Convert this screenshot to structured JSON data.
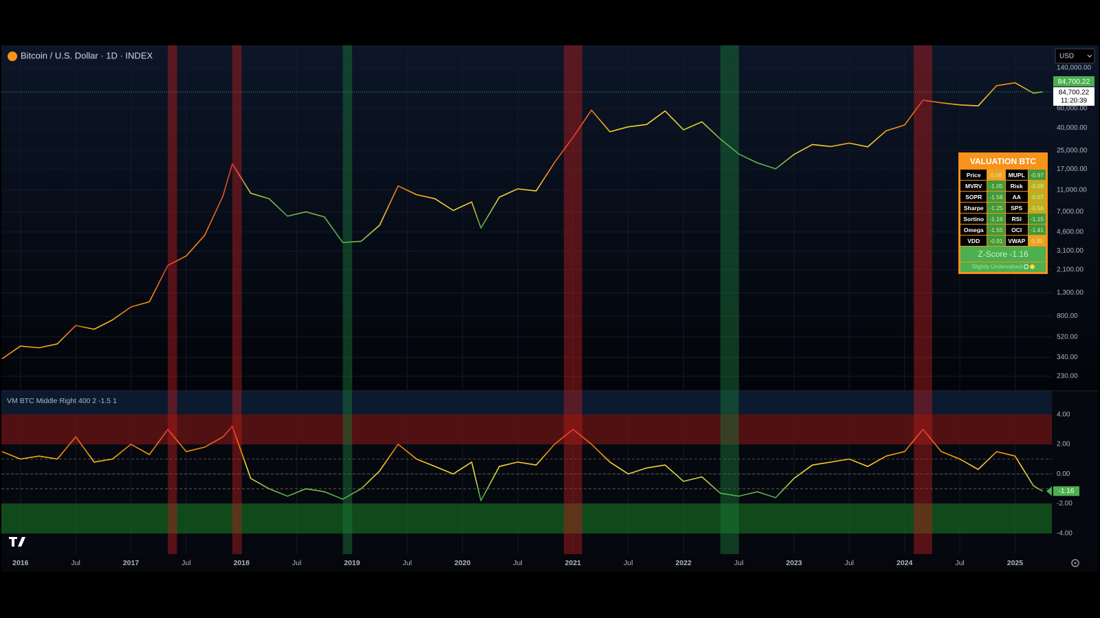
{
  "header": {
    "symbol": "Bitcoin / U.S. Dollar · 1D · INDEX",
    "currency": "USD",
    "price_tag": "84,700.22",
    "countdown": "11:20:39"
  },
  "chart_data": [
    {
      "type": "line",
      "log_scale": true,
      "grid": true,
      "xlim": [
        "2015-11",
        "2025-05"
      ],
      "x": [
        "2015-11",
        "2016-01",
        "2016-03",
        "2016-05",
        "2016-07",
        "2016-09",
        "2016-11",
        "2017-01",
        "2017-03",
        "2017-05",
        "2017-07",
        "2017-09",
        "2017-11",
        "2017-12",
        "2018-02",
        "2018-04",
        "2018-06",
        "2018-08",
        "2018-10",
        "2018-12",
        "2019-02",
        "2019-04",
        "2019-06",
        "2019-08",
        "2019-10",
        "2019-12",
        "2020-02",
        "2020-03",
        "2020-05",
        "2020-07",
        "2020-09",
        "2020-11",
        "2021-01",
        "2021-03",
        "2021-05",
        "2021-07",
        "2021-09",
        "2021-11",
        "2022-01",
        "2022-03",
        "2022-05",
        "2022-07",
        "2022-09",
        "2022-11",
        "2023-01",
        "2023-03",
        "2023-05",
        "2023-07",
        "2023-09",
        "2023-11",
        "2024-01",
        "2024-03",
        "2024-05",
        "2024-07",
        "2024-09",
        "2024-11",
        "2025-01",
        "2025-03",
        "2025-04"
      ],
      "values": [
        330,
        430,
        415,
        450,
        660,
        610,
        740,
        970,
        1080,
        2300,
        2800,
        4300,
        9800,
        19000,
        10300,
        9200,
        6400,
        7000,
        6300,
        3700,
        3800,
        5300,
        12000,
        10000,
        9200,
        7200,
        8600,
        5000,
        9500,
        11300,
        10800,
        19600,
        33000,
        58000,
        37000,
        41000,
        43000,
        57000,
        38500,
        45500,
        31800,
        23300,
        19400,
        17100,
        23100,
        28400,
        27200,
        29200,
        27000,
        37700,
        42500,
        71300,
        67500,
        64600,
        63300,
        96400,
        102400,
        82500,
        84700.22
      ],
      "ylim": [
        170,
        223000
      ],
      "yticks": [
        {
          "value": 140000,
          "label": "140,000.00"
        },
        {
          "value": 60000,
          "label": "60,000.00"
        },
        {
          "value": 40000,
          "label": "40,000.00"
        },
        {
          "value": 25000,
          "label": "25,000.00"
        },
        {
          "value": 17000,
          "label": "17,000.00"
        },
        {
          "value": 11000,
          "label": "11,000.00"
        },
        {
          "value": 7000,
          "label": "7,000.00"
        },
        {
          "value": 4600,
          "label": "4,600.00"
        },
        {
          "value": 3100,
          "label": "3,100.00"
        },
        {
          "value": 2100,
          "label": "2,100.00"
        },
        {
          "value": 1300,
          "label": "1,300.00"
        },
        {
          "value": 800,
          "label": "800.00"
        },
        {
          "value": 520,
          "label": "520.00"
        },
        {
          "value": 340,
          "label": "340.00"
        },
        {
          "value": 230,
          "label": "230.00"
        }
      ],
      "xticks": [
        {
          "value": "2016-01",
          "label": "2016"
        },
        {
          "value": "2016-07",
          "label": "Jul"
        },
        {
          "value": "2017-01",
          "label": "2017"
        },
        {
          "value": "2017-07",
          "label": "Jul"
        },
        {
          "value": "2018-01",
          "label": "2018"
        },
        {
          "value": "2018-07",
          "label": "Jul"
        },
        {
          "value": "2019-01",
          "label": "2019"
        },
        {
          "value": "2019-07",
          "label": "Jul"
        },
        {
          "value": "2020-01",
          "label": "2020"
        },
        {
          "value": "2020-07",
          "label": "Jul"
        },
        {
          "value": "2021-01",
          "label": "2021"
        },
        {
          "value": "2021-07",
          "label": "Jul"
        },
        {
          "value": "2022-01",
          "label": "2022"
        },
        {
          "value": "2022-07",
          "label": "Jul"
        },
        {
          "value": "2023-01",
          "label": "2023"
        },
        {
          "value": "2023-07",
          "label": "Jul"
        },
        {
          "value": "2024-01",
          "label": "2024"
        },
        {
          "value": "2024-07",
          "label": "Jul"
        },
        {
          "value": "2025-01",
          "label": "2025"
        }
      ],
      "highlights": [
        {
          "x": [
            "2017-05",
            "2017-06"
          ],
          "color": "#b71c1c"
        },
        {
          "x": [
            "2017-12",
            "2018-01"
          ],
          "color": "#b71c1c"
        },
        {
          "x": [
            "2020-12",
            "2021-02"
          ],
          "color": "#b71c1c"
        },
        {
          "x": [
            "2024-02",
            "2024-04"
          ],
          "color": "#b71c1c"
        },
        {
          "x": [
            "2018-12",
            "2019-01"
          ],
          "color": "#1b7a3a"
        },
        {
          "x": [
            "2022-05",
            "2022-07"
          ],
          "color": "#1b7a3a"
        }
      ]
    },
    {
      "type": "line",
      "title": "VM BTC Middle Right 400 2 -1.5 1",
      "grid": true,
      "xlim": [
        "2015-11",
        "2025-05"
      ],
      "x": [
        "2015-11",
        "2016-01",
        "2016-03",
        "2016-05",
        "2016-07",
        "2016-09",
        "2016-11",
        "2017-01",
        "2017-03",
        "2017-05",
        "2017-07",
        "2017-09",
        "2017-11",
        "2017-12",
        "2018-02",
        "2018-04",
        "2018-06",
        "2018-08",
        "2018-10",
        "2018-12",
        "2019-02",
        "2019-04",
        "2019-06",
        "2019-08",
        "2019-10",
        "2019-12",
        "2020-02",
        "2020-03",
        "2020-05",
        "2020-07",
        "2020-09",
        "2020-11",
        "2021-01",
        "2021-03",
        "2021-05",
        "2021-07",
        "2021-09",
        "2021-11",
        "2022-01",
        "2022-03",
        "2022-05",
        "2022-07",
        "2022-09",
        "2022-11",
        "2023-01",
        "2023-03",
        "2023-05",
        "2023-07",
        "2023-09",
        "2023-11",
        "2024-01",
        "2024-03",
        "2024-05",
        "2024-07",
        "2024-09",
        "2024-11",
        "2025-01",
        "2025-03",
        "2025-04"
      ],
      "values": [
        1.5,
        1.0,
        1.2,
        1.0,
        2.5,
        0.8,
        1.0,
        2.0,
        1.3,
        3.0,
        1.5,
        1.8,
        2.5,
        3.2,
        -0.3,
        -1.0,
        -1.5,
        -1.0,
        -1.2,
        -1.7,
        -1.0,
        0.2,
        2.0,
        1.0,
        0.5,
        0.0,
        0.8,
        -1.8,
        0.5,
        0.8,
        0.6,
        2.0,
        3.0,
        2.0,
        0.8,
        0.0,
        0.4,
        0.6,
        -0.5,
        -0.2,
        -1.3,
        -1.5,
        -1.2,
        -1.6,
        -0.3,
        0.6,
        0.8,
        1.0,
        0.5,
        1.2,
        1.5,
        3.0,
        1.5,
        1.0,
        0.3,
        1.5,
        1.2,
        -0.8,
        -1.16
      ],
      "ylim": [
        -5.4,
        5.6
      ],
      "yticks": [
        {
          "value": 4,
          "label": "4.00"
        },
        {
          "value": 2,
          "label": "2.00"
        },
        {
          "value": 0,
          "label": "0.00"
        },
        {
          "value": -2,
          "label": "-2.00"
        },
        {
          "value": -4,
          "label": "-4.00"
        }
      ],
      "bands": [
        {
          "range": [
            2,
            4
          ],
          "color": "#6b1414"
        },
        {
          "range": [
            -2,
            -4
          ],
          "color": "#15601f"
        }
      ],
      "reference_lines": [
        1,
        0,
        -1
      ],
      "color_scale": [
        [
          -1.5,
          "#4caf50"
        ],
        [
          -0.5,
          "#c6d33a"
        ],
        [
          0.5,
          "#fdd835"
        ],
        [
          1.5,
          "#fb8c00"
        ],
        [
          3,
          "#e53935"
        ]
      ]
    }
  ],
  "valuation": {
    "title": "VALUATION BTC",
    "rows": [
      [
        "Price",
        "0.58",
        "MUPL",
        "-0.97"
      ],
      [
        "MVRV",
        "-1.05",
        "Risk",
        "-0.08"
      ],
      [
        "SOPR",
        "-1.58",
        "AA",
        "-0.07"
      ],
      [
        "Sharpe",
        "-1.25",
        "SPS",
        "-0.56"
      ],
      [
        "Sortino",
        "-1.16",
        "RSI",
        "-1.15"
      ],
      [
        "Omega",
        "-1.55",
        "OCI",
        "-1.41"
      ],
      [
        "VDD",
        "-0.91",
        "VWAP",
        "0.35"
      ]
    ],
    "zscore": "Z-Score -1.16",
    "status": "Slightly Undervalued"
  }
}
